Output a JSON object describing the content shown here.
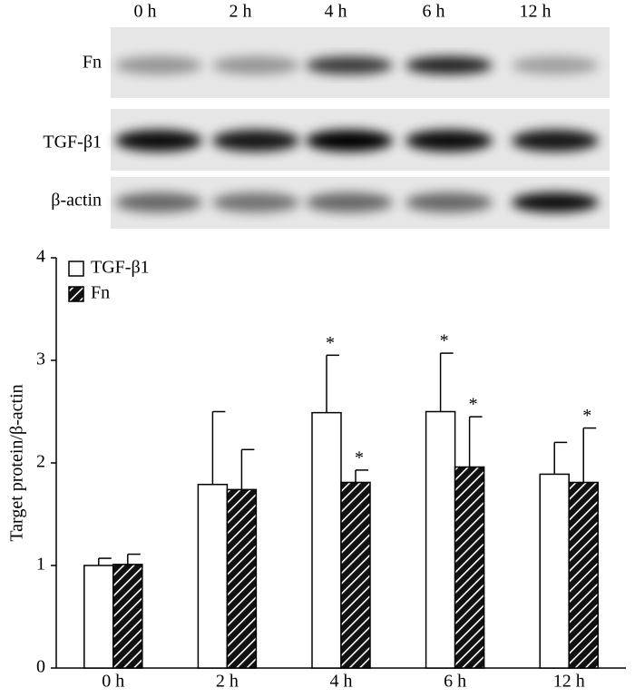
{
  "blot": {
    "lanes": [
      "0 h",
      "2 h",
      "4 h",
      "6 h",
      "12 h"
    ],
    "rows": [
      "Fn",
      "TGF-β1",
      "β-actin"
    ]
  },
  "chart_data": {
    "type": "bar",
    "y_label": "Target protein/β-actin",
    "categories": [
      "0 h",
      "2 h",
      "4 h",
      "6 h",
      "12 h"
    ],
    "series": [
      {
        "name": "TGF-β1",
        "color": "#ffffff",
        "hatch": false,
        "values": [
          1.0,
          1.79,
          2.49,
          2.5,
          1.89
        ],
        "errors": [
          0.07,
          0.71,
          0.56,
          0.57,
          0.31
        ],
        "significance": [
          null,
          null,
          "*",
          "*",
          null
        ]
      },
      {
        "name": "Fn",
        "color": "#000000",
        "hatch": true,
        "values": [
          1.01,
          1.74,
          1.81,
          1.96,
          1.81
        ],
        "errors": [
          0.1,
          0.39,
          0.12,
          0.49,
          0.53
        ],
        "significance": [
          null,
          null,
          "*",
          "*",
          "*"
        ]
      }
    ],
    "ylim": [
      0,
      4
    ],
    "yticks": [
      0,
      1,
      2,
      3,
      4
    ],
    "legend": "top-left",
    "grid": false
  }
}
